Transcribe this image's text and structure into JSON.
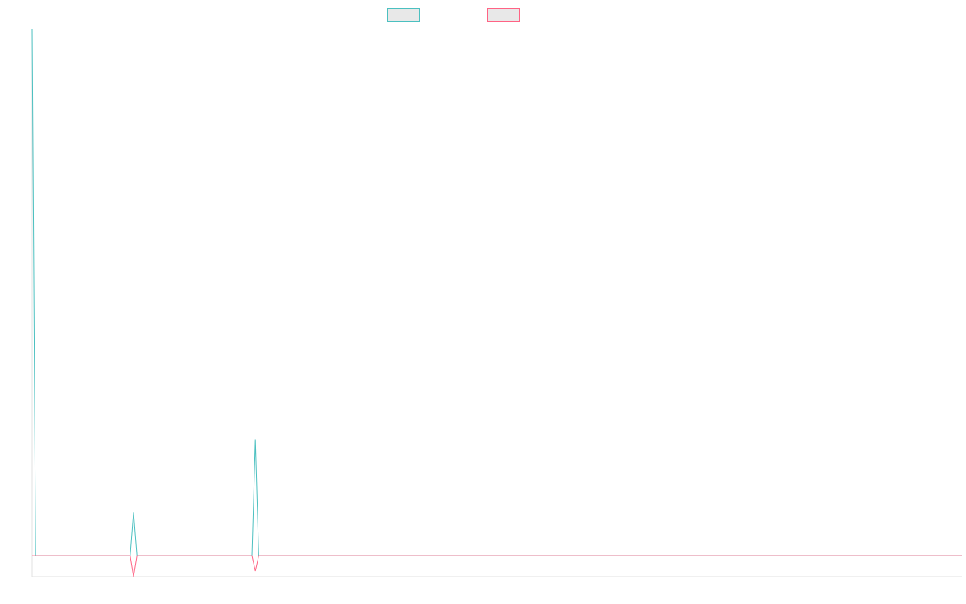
{
  "chart_data": {
    "type": "line",
    "title": "",
    "xlabel": "",
    "ylabel": "",
    "legend_position": "top-center",
    "grid": false,
    "x_count": 276,
    "ylim": [
      -26,
      656
    ],
    "series": [
      {
        "name": "",
        "color": "#4bc0c0",
        "legend_fill": "#e8e8e8",
        "points": [
          {
            "i": 0,
            "v": 656
          },
          {
            "i": 1,
            "v": 0
          },
          {
            "i": 29,
            "v": 0
          },
          {
            "i": 30,
            "v": 54
          },
          {
            "i": 31,
            "v": 0
          },
          {
            "i": 65,
            "v": 0
          },
          {
            "i": 66,
            "v": 145
          },
          {
            "i": 67,
            "v": 0
          },
          {
            "i": 275,
            "v": 0
          }
        ]
      },
      {
        "name": "",
        "color": "#ff6384",
        "legend_fill": "#e8e8e8",
        "points": [
          {
            "i": 0,
            "v": 0
          },
          {
            "i": 29,
            "v": 0
          },
          {
            "i": 30,
            "v": -26
          },
          {
            "i": 31,
            "v": 0
          },
          {
            "i": 65,
            "v": 0
          },
          {
            "i": 66,
            "v": -19
          },
          {
            "i": 67,
            "v": 0
          },
          {
            "i": 275,
            "v": 0
          }
        ]
      }
    ]
  }
}
